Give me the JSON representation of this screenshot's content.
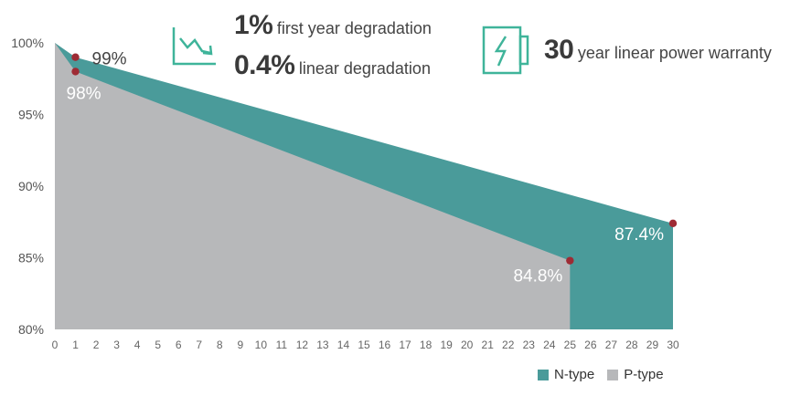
{
  "colors": {
    "n_type": "#4a9b9a",
    "p_type": "#b7b8ba",
    "marker": "#9e2b34",
    "icon": "#3fb49a"
  },
  "header": {
    "first_year": {
      "value": "1%",
      "text": "first year degradation"
    },
    "linear": {
      "value": "0.4%",
      "text": "linear degradation"
    },
    "warranty": {
      "value": "30",
      "text": "year linear power warranty"
    },
    "icons": [
      "degradation-chart-icon",
      "battery-lightning-icon"
    ]
  },
  "legend": [
    {
      "label": "N-type",
      "color": "#4a9b9a"
    },
    {
      "label": "P-type",
      "color": "#b7b8ba"
    }
  ],
  "chart_data": {
    "type": "area",
    "x": [
      0,
      1,
      25,
      30
    ],
    "xlim": [
      0,
      30
    ],
    "ylim": [
      80,
      100
    ],
    "x_ticks": [
      "0",
      "1",
      "2",
      "3",
      "4",
      "5",
      "6",
      "7",
      "8",
      "9",
      "10",
      "11",
      "12",
      "13",
      "14",
      "15",
      "16",
      "17",
      "18",
      "19",
      "20",
      "21",
      "22",
      "23",
      "24",
      "25",
      "26",
      "27",
      "28",
      "29",
      "30"
    ],
    "y_ticks": [
      "100%",
      "95%",
      "90%",
      "85%",
      "80%"
    ],
    "y_tick_values": [
      100,
      95,
      90,
      85,
      80
    ],
    "series": [
      {
        "name": "N-type",
        "x": [
          0,
          1,
          30
        ],
        "values": [
          100,
          99,
          87.4
        ]
      },
      {
        "name": "P-type",
        "x": [
          0,
          1,
          25
        ],
        "values": [
          100,
          98,
          84.8
        ]
      }
    ],
    "annotations": [
      {
        "x": 1,
        "y": 99,
        "label": "99%"
      },
      {
        "x": 1,
        "y": 98,
        "label": "98%"
      },
      {
        "x": 25,
        "y": 84.8,
        "label": "84.8%"
      },
      {
        "x": 30,
        "y": 87.4,
        "label": "87.4%"
      }
    ]
  }
}
